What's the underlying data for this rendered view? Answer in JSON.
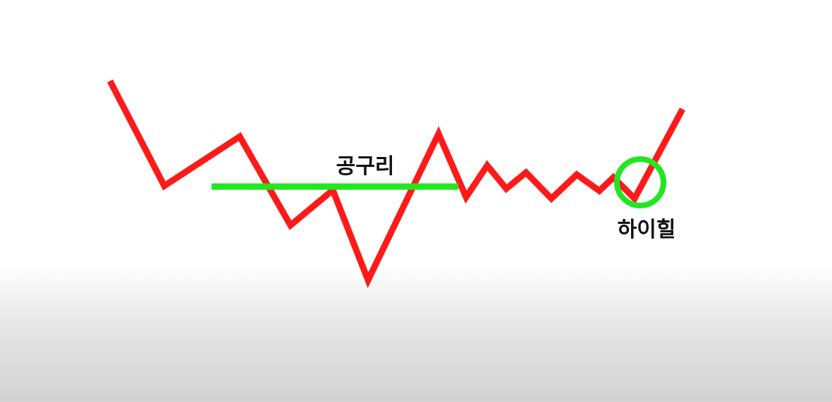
{
  "labels": {
    "resistance": "공구리",
    "high_heel": "하이힐"
  },
  "colors": {
    "price_line": "#ff1a1a",
    "highlight": "#22e622",
    "label_text": "#111111"
  }
}
